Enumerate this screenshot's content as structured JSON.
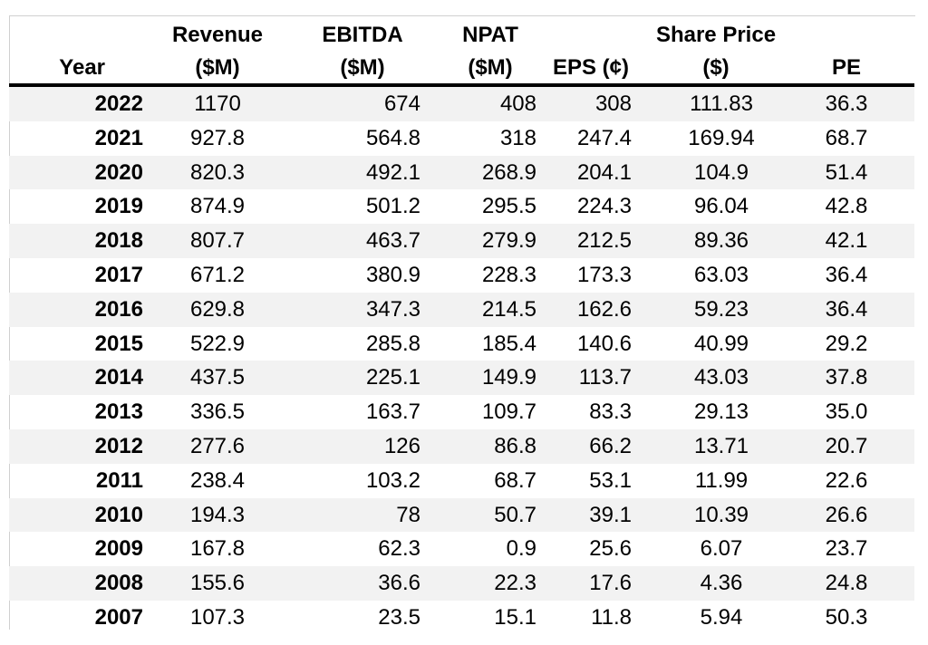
{
  "chart_data": {
    "type": "table",
    "headers": [
      {
        "line1": "",
        "line2": "Year"
      },
      {
        "line1": "Revenue",
        "line2": "($M)"
      },
      {
        "line1": "EBITDA",
        "line2": "($M)"
      },
      {
        "line1": "NPAT",
        "line2": "($M)"
      },
      {
        "line1": "",
        "line2": "EPS (¢)"
      },
      {
        "line1": "Share Price",
        "line2": "($)"
      },
      {
        "line1": "",
        "line2": "PE"
      }
    ],
    "rows": [
      [
        "2022",
        "1170",
        "674",
        "408",
        "308",
        "111.83",
        "36.3"
      ],
      [
        "2021",
        "927.8",
        "564.8",
        "318",
        "247.4",
        "169.94",
        "68.7"
      ],
      [
        "2020",
        "820.3",
        "492.1",
        "268.9",
        "204.1",
        "104.9",
        "51.4"
      ],
      [
        "2019",
        "874.9",
        "501.2",
        "295.5",
        "224.3",
        "96.04",
        "42.8"
      ],
      [
        "2018",
        "807.7",
        "463.7",
        "279.9",
        "212.5",
        "89.36",
        "42.1"
      ],
      [
        "2017",
        "671.2",
        "380.9",
        "228.3",
        "173.3",
        "63.03",
        "36.4"
      ],
      [
        "2016",
        "629.8",
        "347.3",
        "214.5",
        "162.6",
        "59.23",
        "36.4"
      ],
      [
        "2015",
        "522.9",
        "285.8",
        "185.4",
        "140.6",
        "40.99",
        "29.2"
      ],
      [
        "2014",
        "437.5",
        "225.1",
        "149.9",
        "113.7",
        "43.03",
        "37.8"
      ],
      [
        "2013",
        "336.5",
        "163.7",
        "109.7",
        "83.3",
        "29.13",
        "35.0"
      ],
      [
        "2012",
        "277.6",
        "126",
        "86.8",
        "66.2",
        "13.71",
        "20.7"
      ],
      [
        "2011",
        "238.4",
        "103.2",
        "68.7",
        "53.1",
        "11.99",
        "22.6"
      ],
      [
        "2010",
        "194.3",
        "78",
        "50.7",
        "39.1",
        "10.39",
        "26.6"
      ],
      [
        "2009",
        "167.8",
        "62.3",
        "0.9",
        "25.6",
        "6.07",
        "23.7"
      ],
      [
        "2008",
        "155.6",
        "36.6",
        "22.3",
        "17.6",
        "4.36",
        "24.8"
      ],
      [
        "2007",
        "107.3",
        "23.5",
        "15.1",
        "11.8",
        "5.94",
        "50.3"
      ]
    ]
  }
}
